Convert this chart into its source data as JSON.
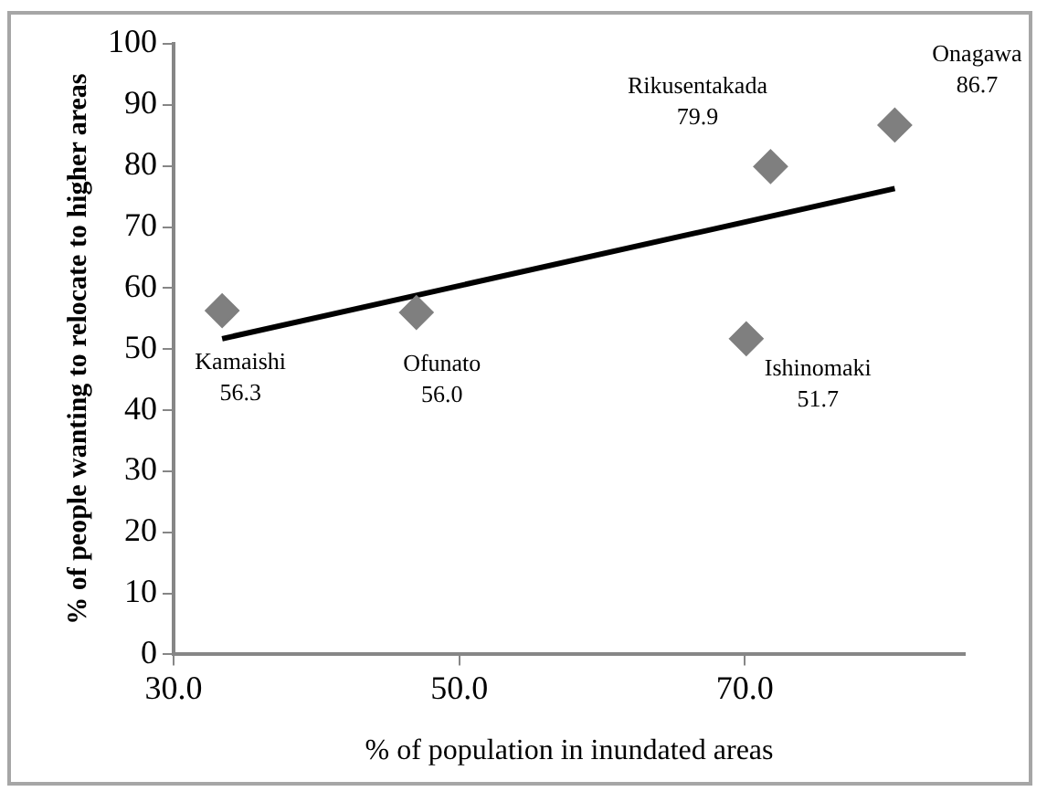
{
  "chart_data": {
    "type": "scatter",
    "xlabel": "% of population in inundated areas",
    "ylabel": "% of people wanting to relocate to higher areas",
    "xlim": [
      30,
      85.4
    ],
    "xticks": [
      {
        "value": 30,
        "label": "30.0"
      },
      {
        "value": 50,
        "label": "50.0"
      },
      {
        "value": 70,
        "label": "70.0"
      }
    ],
    "ylim": [
      0,
      100
    ],
    "yticks": [
      0,
      10,
      20,
      30,
      40,
      50,
      60,
      70,
      80,
      90,
      100
    ],
    "grid": false,
    "legend": false,
    "marker": "diamond",
    "series": [
      {
        "color": "#7f7f7f",
        "x": [
          33.4,
          47.0,
          70.1,
          71.8,
          80.5
        ],
        "values": [
          56.3,
          56.0,
          51.7,
          79.9,
          86.7
        ]
      },
      {
        "type": "line",
        "color": "#000000",
        "x": [
          33.4,
          80.5
        ],
        "values": [
          51.7,
          76.3
        ],
        "marker": "none"
      }
    ],
    "annotations": [
      {
        "text": "Kamaishi\n56.3",
        "x": 33.4,
        "y": 56.3
      },
      {
        "text": "Ofunato\n56.0",
        "x": 47.0,
        "y": 56.0
      },
      {
        "text": "Ishinomaki\n51.7",
        "x": 70.1,
        "y": 51.7
      },
      {
        "text": "Rikusentakada\n79.9",
        "x": 71.8,
        "y": 79.9
      },
      {
        "text": "Onagawa\n86.7",
        "x": 80.5,
        "y": 86.7
      }
    ]
  }
}
